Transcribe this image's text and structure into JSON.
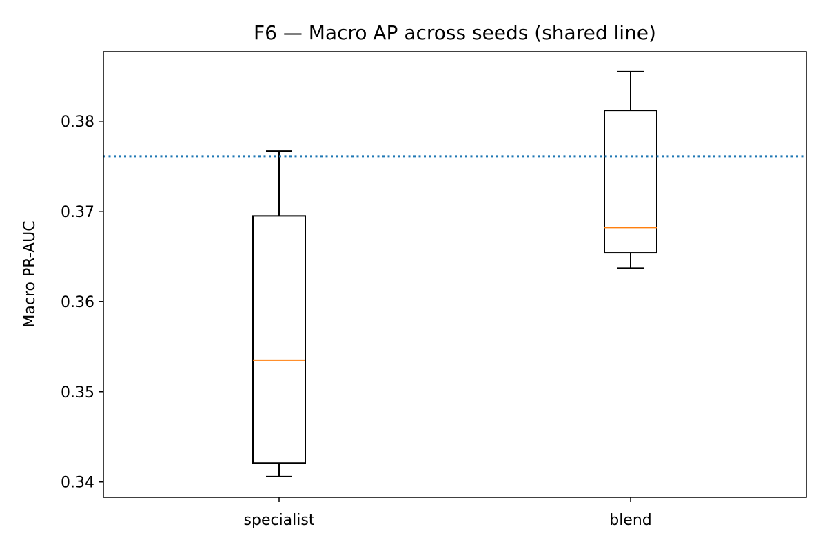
{
  "chart_data": {
    "type": "box",
    "title": "F6 — Macro AP across seeds (shared line)",
    "xlabel": "",
    "ylabel": "Macro PR-AUC",
    "ylim": [
      0.3383,
      0.3877
    ],
    "yticks": [
      0.34,
      0.35,
      0.36,
      0.37,
      0.38
    ],
    "ytick_labels": [
      "0.34",
      "0.35",
      "0.36",
      "0.37",
      "0.38"
    ],
    "categories": [
      "specialist",
      "blend"
    ],
    "boxes": [
      {
        "category": "specialist",
        "whisker_low": 0.3406,
        "q1": 0.3421,
        "median": 0.3535,
        "q3": 0.3695,
        "whisker_high": 0.3767
      },
      {
        "category": "blend",
        "whisker_low": 0.3637,
        "q1": 0.3654,
        "median": 0.3682,
        "q3": 0.3812,
        "whisker_high": 0.3855
      }
    ],
    "reference_line": {
      "y": 0.3761,
      "style": "dotted",
      "color": "#1f77b4"
    },
    "colors": {
      "box": "#000000",
      "median": "#ff7f0e",
      "reference": "#1f77b4"
    },
    "grid": false,
    "legend": "none"
  }
}
